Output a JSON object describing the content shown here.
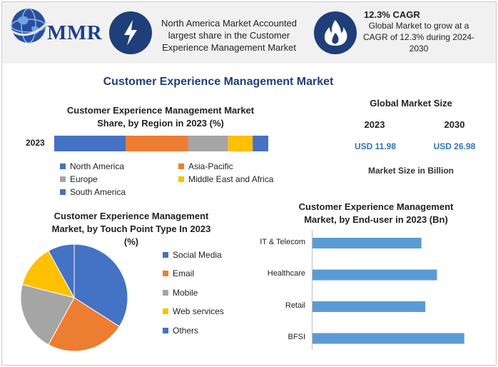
{
  "header": {
    "logo_text": "MMR",
    "headline": [
      "North America Market Accounted",
      "largest share in the Customer",
      "Experience Management Market"
    ],
    "cagr_title": "12.3% CAGR",
    "cagr_text": [
      "Global Market to grow at a",
      "CAGR of 12.3% during 2024-",
      "2030"
    ],
    "icon_bg_color": "#1f3f7a"
  },
  "main_title": "Customer Experience Management Market",
  "market_size": {
    "title": "Global Market Size",
    "year1": "2023",
    "year2": "2030",
    "value1": "USD 11.98",
    "value2": "USD 26.98",
    "unit_note": "Market Size in Billion"
  },
  "chart_data": [
    {
      "type": "bar",
      "orientation": "horizontal-stacked",
      "title_lines": [
        "Customer Experience Management Market",
        "Share, by Region in 2023 (%)"
      ],
      "categories": [
        "2023"
      ],
      "series": [
        {
          "name": "North America",
          "values": [
            32
          ],
          "color": "#4472c4"
        },
        {
          "name": "Asia-Pacific",
          "values": [
            28
          ],
          "color": "#ed7d31"
        },
        {
          "name": "Europe",
          "values": [
            18
          ],
          "color": "#a5a5a5"
        },
        {
          "name": "Middle East and Africa",
          "values": [
            11
          ],
          "color": "#ffc000"
        },
        {
          "name": "South America",
          "values": [
            7
          ],
          "color": "#4472c4"
        }
      ],
      "legend": "below"
    },
    {
      "type": "pie",
      "title_lines": [
        "Customer Experience Management",
        "Market, by Touch Point Type In 2023",
        "(%)"
      ],
      "labels": [
        "Social Media",
        "Email",
        "Mobile",
        "Web services",
        "Others"
      ],
      "values": [
        34,
        24,
        21,
        13,
        8
      ],
      "colors": [
        "#4472c4",
        "#ed7d31",
        "#a5a5a5",
        "#ffc000",
        "#4472c4"
      ],
      "legend": "right"
    },
    {
      "type": "bar",
      "orientation": "horizontal",
      "title_lines": [
        "Customer Experience Management",
        "Market, by End-user in 2023 (Bn)"
      ],
      "categories": [
        "IT & Telecom",
        "Healthcare",
        "Retail",
        "BFSI"
      ],
      "values": [
        2.8,
        3.2,
        2.9,
        3.9
      ],
      "xlim": [
        0,
        4.4
      ],
      "color": "#5b9bd5",
      "grid": false
    }
  ]
}
